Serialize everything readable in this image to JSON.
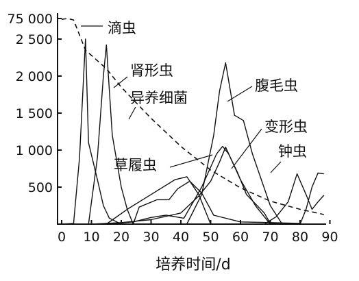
{
  "chart_data": {
    "type": "line",
    "xlabel": "培养时间/d",
    "ylabel": "",
    "title": "",
    "xlim": [
      0,
      90
    ],
    "x_ticks": [
      0,
      10,
      20,
      30,
      40,
      50,
      60,
      70,
      80,
      90
    ],
    "y_ticks": [
      {
        "label": "75 000",
        "value": 75000
      },
      {
        "label": "2 500",
        "value": 2500
      },
      {
        "label": "2 000",
        "value": 2000
      },
      {
        "label": "1 500",
        "value": 1500
      },
      {
        "label": "1 000",
        "value": 1000
      },
      {
        "label": "500",
        "value": 500
      }
    ],
    "y_axis_break": "between 2500 and 75000",
    "grid": false,
    "series": [
      {
        "name": "异养细菌",
        "style": "dashed",
        "points": [
          [
            0,
            72000
          ],
          [
            2,
            75000
          ],
          [
            4,
            70000
          ],
          [
            8,
            2350
          ],
          [
            15,
            2100
          ],
          [
            20,
            1850
          ],
          [
            30,
            1430
          ],
          [
            40,
            1050
          ],
          [
            50,
            730
          ],
          [
            60,
            490
          ],
          [
            70,
            310
          ],
          [
            80,
            200
          ],
          [
            88,
            130
          ]
        ]
      },
      {
        "name": "滴虫",
        "points": [
          [
            0,
            0
          ],
          [
            4,
            10
          ],
          [
            6,
            900
          ],
          [
            8,
            2700
          ],
          [
            9,
            1100
          ],
          [
            12,
            600
          ],
          [
            14,
            250
          ],
          [
            16,
            80
          ],
          [
            20,
            0
          ]
        ]
      },
      {
        "name": "肾形虫",
        "points": [
          [
            9,
            0
          ],
          [
            12,
            900
          ],
          [
            14,
            2000
          ],
          [
            15,
            2420
          ],
          [
            17,
            1200
          ],
          [
            20,
            500
          ],
          [
            22,
            200
          ],
          [
            24,
            0
          ]
        ]
      },
      {
        "name": "腹毛虫",
        "points": [
          [
            42,
            0
          ],
          [
            47,
            400
          ],
          [
            51,
            1200
          ],
          [
            53,
            1800
          ],
          [
            55,
            2180
          ],
          [
            58,
            1470
          ],
          [
            61,
            1400
          ],
          [
            64,
            950
          ],
          [
            70,
            250
          ],
          [
            74,
            0
          ]
        ]
      },
      {
        "name": "草履虫",
        "points": [
          [
            15,
            0
          ],
          [
            24,
            30
          ],
          [
            30,
            90
          ],
          [
            35,
            120
          ],
          [
            41,
            80
          ],
          [
            47,
            500
          ],
          [
            52,
            950
          ],
          [
            54,
            1050
          ],
          [
            56,
            950
          ],
          [
            59,
            700
          ],
          [
            62,
            400
          ],
          [
            68,
            150
          ],
          [
            70,
            10
          ],
          [
            76,
            0
          ]
        ]
      },
      {
        "name": "变形虫",
        "points": [
          [
            24,
            0
          ],
          [
            26,
            230
          ],
          [
            32,
            330
          ],
          [
            36,
            330
          ],
          [
            39,
            480
          ],
          [
            43,
            580
          ],
          [
            47,
            420
          ],
          [
            51,
            120
          ],
          [
            60,
            30
          ],
          [
            70,
            20
          ],
          [
            80,
            10
          ]
        ]
      },
      {
        "name": "钟虫",
        "points": [
          [
            68,
            0
          ],
          [
            72,
            100
          ],
          [
            76,
            300
          ],
          [
            79,
            680
          ],
          [
            82,
            400
          ],
          [
            84,
            200
          ],
          [
            86,
            300
          ],
          [
            88,
            390
          ]
        ]
      },
      {
        "name": "",
        "points": [
          [
            10,
            0
          ],
          [
            20,
            20
          ],
          [
            30,
            60
          ],
          [
            40,
            150
          ],
          [
            46,
            380
          ],
          [
            50,
            580
          ],
          [
            53,
            840
          ],
          [
            55,
            1040
          ],
          [
            60,
            600
          ],
          [
            65,
            250
          ],
          [
            70,
            0
          ]
        ]
      },
      {
        "name": "",
        "points": [
          [
            15,
            0
          ],
          [
            22,
            200
          ],
          [
            30,
            400
          ],
          [
            38,
            600
          ],
          [
            42,
            640
          ],
          [
            46,
            400
          ],
          [
            50,
            0
          ]
        ]
      },
      {
        "name": "",
        "points": [
          [
            80,
            0
          ],
          [
            82,
            200
          ],
          [
            84,
            500
          ],
          [
            86,
            690
          ],
          [
            88,
            680
          ]
        ]
      }
    ],
    "annotations": [
      {
        "text": "滴虫",
        "series": "滴虫"
      },
      {
        "text": "肾形虫",
        "series": "肾形虫"
      },
      {
        "text": "异养细菌",
        "series": "异养细菌"
      },
      {
        "text": "腹毛虫",
        "series": "腹毛虫"
      },
      {
        "text": "变形虫",
        "series": "变形虫"
      },
      {
        "text": "钟虫",
        "series": "钟虫"
      },
      {
        "text": "草履虫",
        "series": "草履虫"
      }
    ]
  }
}
